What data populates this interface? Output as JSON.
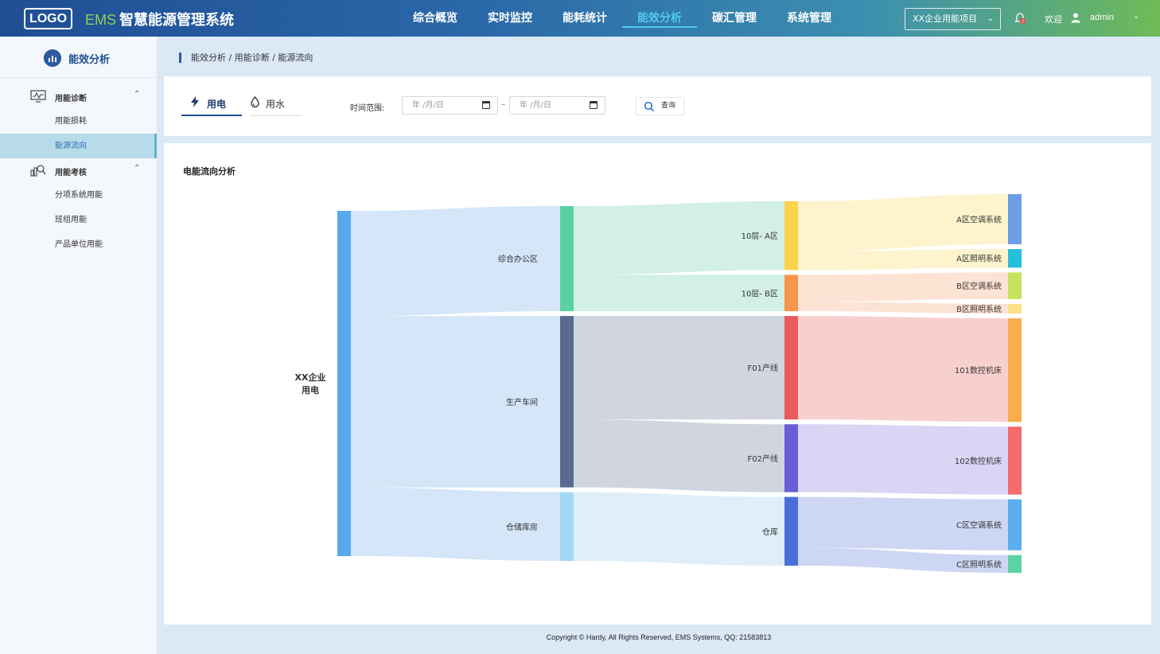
{
  "header": {
    "logo": "LOGO",
    "brand": "EMS",
    "title": "智慧能源管理系统",
    "nav": [
      "综合概览",
      "实时监控",
      "能耗统计",
      "能效分析",
      "碳汇管理",
      "系统管理"
    ],
    "active_nav": "能效分析",
    "project": "XX企业用能项目",
    "welcome": "欢迎",
    "username": "admin",
    "notification_count": "2",
    "accent": "#51c9f0"
  },
  "sidebar": {
    "title": "能效分析",
    "groups": [
      {
        "label": "用能诊断",
        "icon": "monitor-chart-icon",
        "items": [
          "用能损耗",
          "能源流向"
        ]
      },
      {
        "label": "用能考核",
        "icon": "bar-chart-magnifier-icon",
        "items": [
          "分项系统用能",
          "班组用能",
          "产品单位用能"
        ]
      }
    ],
    "active_item": "能源流向"
  },
  "breadcrumb": "能效分析 / 用能诊断 / 能源流向",
  "filters": {
    "tab_power": "用电",
    "tab_water": "用水",
    "time_label": "时间范围:",
    "date_start_placeholder": "年 /月/日",
    "date_end_placeholder": "年 /月/日",
    "separator": "–",
    "query_label": "查询"
  },
  "chart_title": "电能流向分析",
  "chart_data": {
    "type": "sankey",
    "nodes": [
      {
        "name": "XX企业用电",
        "level": 0,
        "color": "#58a9ec"
      },
      {
        "name": "综合办公区",
        "level": 1,
        "color": "#5bd0a3"
      },
      {
        "name": "生产车间",
        "level": 1,
        "color": "#5a6a8e"
      },
      {
        "name": "仓储库房",
        "level": 1,
        "color": "#a2d8f5"
      },
      {
        "name": "10层- A区",
        "level": 2,
        "color": "#fbd24c"
      },
      {
        "name": "10层- B区",
        "level": 2,
        "color": "#f7954a"
      },
      {
        "name": "F01产线",
        "level": 2,
        "color": "#e95a5a"
      },
      {
        "name": "F02产线",
        "level": 2,
        "color": "#6a5ed8"
      },
      {
        "name": "仓库",
        "level": 2,
        "color": "#4a6fd8"
      },
      {
        "name": "A区空调系统",
        "level": 3,
        "color": "#6c9ee6"
      },
      {
        "name": "A区照明系统",
        "level": 3,
        "color": "#25bfdc"
      },
      {
        "name": "B区空调系统",
        "level": 3,
        "color": "#c6e35b"
      },
      {
        "name": "B区照明系统",
        "level": 3,
        "color": "#fbe086"
      },
      {
        "name": "101数控机床",
        "level": 3,
        "color": "#fbac4b"
      },
      {
        "name": "102数控机床",
        "level": 3,
        "color": "#f36b6b"
      },
      {
        "name": "C区空调系统",
        "level": 3,
        "color": "#5aaeec"
      },
      {
        "name": "C区照明系统",
        "level": 3,
        "color": "#5cd3a4"
      }
    ],
    "links": [
      {
        "source": "XX企业用电",
        "target": "综合办公区",
        "value": 130
      },
      {
        "source": "XX企业用电",
        "target": "生产车间",
        "value": 212
      },
      {
        "source": "XX企业用电",
        "target": "仓储库房",
        "value": 85
      },
      {
        "source": "综合办公区",
        "target": "10层- A区",
        "value": 85
      },
      {
        "source": "综合办公区",
        "target": "10层- B区",
        "value": 45
      },
      {
        "source": "生产车间",
        "target": "F01产线",
        "value": 128
      },
      {
        "source": "生产车间",
        "target": "F02产线",
        "value": 84
      },
      {
        "source": "仓储库房",
        "target": "仓库",
        "value": 85
      },
      {
        "source": "10层- A区",
        "target": "A区空调系统",
        "value": 62
      },
      {
        "source": "10层- A区",
        "target": "A区照明系统",
        "value": 23
      },
      {
        "source": "10层- B区",
        "target": "B区空调系统",
        "value": 33
      },
      {
        "source": "10层- B区",
        "target": "B区照明系统",
        "value": 12
      },
      {
        "source": "F01产线",
        "target": "101数控机床",
        "value": 128
      },
      {
        "source": "F02产线",
        "target": "102数控机床",
        "value": 84
      },
      {
        "source": "仓库",
        "target": "C区空调系统",
        "value": 63
      },
      {
        "source": "仓库",
        "target": "C区照明系统",
        "value": 22
      }
    ],
    "link_colors": {
      "XX企业用电": "#cfe3f7",
      "综合办公区": "#cdeee0",
      "生产车间": "#cbd0db",
      "仓储库房": "#dcedf8",
      "10层- A区": "#fdf2c8",
      "10层- B区": "#fde0cf",
      "F01产线": "#f6cbc9",
      "F02产线": "#d5d0f3",
      "仓库": "#c8d3f3"
    }
  },
  "footer": "Copyright © Hardy, All Rights Reserved,  EMS Systems,  QQ:  21583813"
}
